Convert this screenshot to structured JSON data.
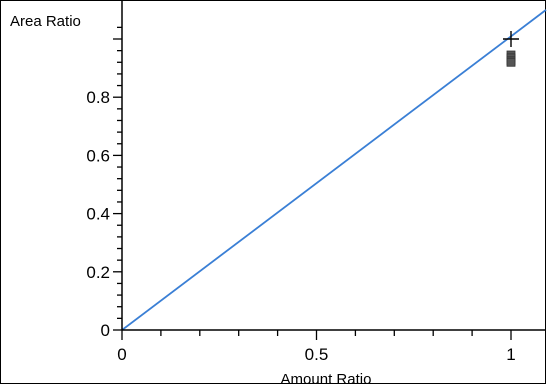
{
  "chart_data": {
    "type": "scatter",
    "title": "",
    "xlabel": "Amount Ratio",
    "ylabel": "Area Ratio",
    "xlim": [
      0,
      1.1
    ],
    "ylim": [
      0,
      1.05
    ],
    "x_ticks": [
      0,
      0.5,
      1
    ],
    "x_tick_labels": [
      "0",
      "0.5",
      "1"
    ],
    "y_ticks": [
      0,
      0.2,
      0.4,
      0.6,
      0.8
    ],
    "y_tick_labels": [
      "0",
      "0.2",
      "0.4",
      "0.6",
      "0.8"
    ],
    "grid": false,
    "legend": false,
    "series": [
      {
        "type": "line",
        "color": "#3a7fd5",
        "x": [
          0,
          1.1
        ],
        "y": [
          0,
          1.1
        ]
      },
      {
        "type": "scatter",
        "marker": "plus",
        "color": "#000000",
        "x": [
          1.0
        ],
        "y": [
          1.0
        ]
      },
      {
        "type": "scatter",
        "marker": "square",
        "color": "#555555",
        "x": [
          1.0,
          1.0,
          1.0,
          1.0
        ],
        "y": [
          0.945,
          0.935,
          0.925,
          0.92
        ]
      }
    ]
  }
}
